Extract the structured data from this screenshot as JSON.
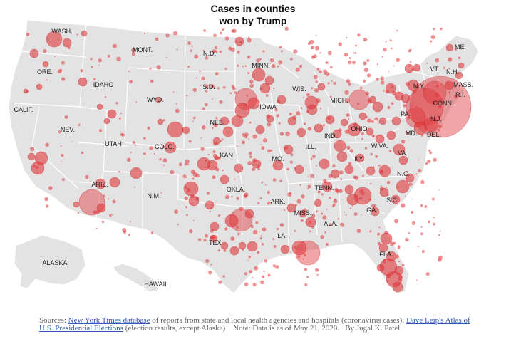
{
  "title": {
    "line1": "Cases in counties",
    "line2": "won by Trump"
  },
  "colors": {
    "land": "#e3e3e3",
    "water": "#ffffff",
    "border": "#ffffff",
    "bubble_fill": "#e0373b",
    "bubble_stroke": "#c81e23"
  },
  "state_labels": [
    {
      "id": "wa",
      "text": "WASH."
    },
    {
      "id": "mt",
      "text": "MONT."
    },
    {
      "id": "nd",
      "text": "N.D."
    },
    {
      "id": "mn",
      "text": "MINN."
    },
    {
      "id": "me",
      "text": "ME."
    },
    {
      "id": "or",
      "text": "ORE."
    },
    {
      "id": "id",
      "text": "IDAHO"
    },
    {
      "id": "sd",
      "text": "S.D."
    },
    {
      "id": "wi",
      "text": "WIS."
    },
    {
      "id": "mi",
      "text": "MICH."
    },
    {
      "id": "vt",
      "text": "VT."
    },
    {
      "id": "nh",
      "text": "N.H."
    },
    {
      "id": "ny",
      "text": "N.Y."
    },
    {
      "id": "ma",
      "text": "MASS."
    },
    {
      "id": "ri",
      "text": "R.I."
    },
    {
      "id": "ct",
      "text": "CONN."
    },
    {
      "id": "wy",
      "text": "WYO."
    },
    {
      "id": "ia",
      "text": "IOWA"
    },
    {
      "id": "ca",
      "text": "CALIF."
    },
    {
      "id": "nv",
      "text": "NEV."
    },
    {
      "id": "ne",
      "text": "NEB."
    },
    {
      "id": "pa",
      "text": "PA."
    },
    {
      "id": "nj",
      "text": "N.J."
    },
    {
      "id": "oh",
      "text": "OHIO"
    },
    {
      "id": "in",
      "text": "IND."
    },
    {
      "id": "md",
      "text": "MD."
    },
    {
      "id": "de",
      "text": "DEL."
    },
    {
      "id": "ut",
      "text": "UTAH"
    },
    {
      "id": "co",
      "text": "COLO."
    },
    {
      "id": "il",
      "text": "ILL."
    },
    {
      "id": "wv",
      "text": "W.VA."
    },
    {
      "id": "ks",
      "text": "KAN."
    },
    {
      "id": "va",
      "text": "VA."
    },
    {
      "id": "mo",
      "text": "MO."
    },
    {
      "id": "ky",
      "text": "KY."
    },
    {
      "id": "nc",
      "text": "N.C."
    },
    {
      "id": "az",
      "text": "ARIZ."
    },
    {
      "id": "ok",
      "text": "OKLA."
    },
    {
      "id": "nm",
      "text": "N.M."
    },
    {
      "id": "tn",
      "text": "TENN."
    },
    {
      "id": "ar",
      "text": "ARK."
    },
    {
      "id": "sc",
      "text": "S.C."
    },
    {
      "id": "ga",
      "text": "GA."
    },
    {
      "id": "ms",
      "text": "MISS."
    },
    {
      "id": "al",
      "text": "ALA."
    },
    {
      "id": "la",
      "text": "LA."
    },
    {
      "id": "tx",
      "text": "TEX."
    },
    {
      "id": "fl",
      "text": "FLA."
    },
    {
      "id": "ak",
      "text": "ALASKA"
    },
    {
      "id": "hi",
      "text": "HAWAII"
    }
  ],
  "footer": {
    "sources_prefix": "Sources: ",
    "nyt_link": "New York Times database",
    "nyt_text": " of reports from state and local health agencies and hospitals (coronavirus cases); ",
    "leip_link": "Dave Leip's Atlas of U.S. Presidential Elections",
    "leip_text": " (election results, except Alaska)",
    "note": "Note: Data is as of May 21, 2020.",
    "byline": "By Jugal K. Patel"
  }
}
